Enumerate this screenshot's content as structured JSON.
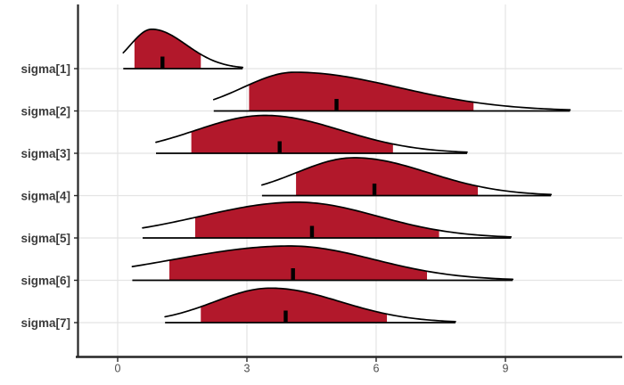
{
  "figure": {
    "background": "#FFFFFF",
    "kind": "ridgeline posterior density plot"
  },
  "style": {
    "fill_color": "#B2182B",
    "outline_color": "#000000",
    "median_tick_color": "#000000",
    "axis_line_color": "#262626",
    "grid_color": "#E4E4E4",
    "y_label_color": "#3C3C3C",
    "x_label_color": "#4D4D4D"
  },
  "chart_data": {
    "type": "area",
    "subtype": "ridgeline-density-areas",
    "title": "",
    "xlabel": "",
    "ylabel": "",
    "grid": true,
    "legend": false,
    "x_ticks": [
      0,
      3,
      6,
      9
    ],
    "x_tick_labels": [
      "0",
      "3",
      "6",
      "9"
    ],
    "xlim": [
      -0.93,
      11.7
    ],
    "categories": [
      "sigma[1]",
      "sigma[2]",
      "sigma[3]",
      "sigma[4]",
      "sigma[5]",
      "sigma[6]",
      "sigma[7]"
    ],
    "series": [
      {
        "name": "sigma[1]",
        "curve_start": 0.13,
        "curve_end": 2.9,
        "mode": 0.79,
        "sigma_left": 0.49,
        "sigma_right": 0.8,
        "shade_from": 0.39,
        "shade_to": 1.93,
        "median": 1.04,
        "rel_height": 0.93
      },
      {
        "name": "sigma[2]",
        "curve_start": 2.23,
        "curve_end": 10.5,
        "mode": 4.11,
        "sigma_left": 1.2,
        "sigma_right": 2.41,
        "shade_from": 3.05,
        "shade_to": 8.26,
        "median": 5.08,
        "rel_height": 0.915
      },
      {
        "name": "sigma[3]",
        "curve_start": 0.89,
        "curve_end": 8.11,
        "mode": 3.42,
        "sigma_left": 1.61,
        "sigma_right": 1.77,
        "shade_from": 1.71,
        "shade_to": 6.39,
        "median": 3.76,
        "rel_height": 0.895
      },
      {
        "name": "sigma[4]",
        "curve_start": 3.35,
        "curve_end": 10.06,
        "mode": 5.49,
        "sigma_left": 1.34,
        "sigma_right": 1.72,
        "shade_from": 4.14,
        "shade_to": 8.36,
        "median": 5.96,
        "rel_height": 0.895
      },
      {
        "name": "sigma[5]",
        "curve_start": 0.58,
        "curve_end": 9.13,
        "mode": 4.17,
        "sigma_left": 2.25,
        "sigma_right": 1.87,
        "shade_from": 1.8,
        "shade_to": 7.46,
        "median": 4.51,
        "rel_height": 0.845
      },
      {
        "name": "sigma[6]",
        "curve_start": 0.34,
        "curve_end": 9.17,
        "mode": 4.0,
        "sigma_left": 2.7,
        "sigma_right": 1.95,
        "shade_from": 1.2,
        "shade_to": 7.18,
        "median": 4.07,
        "rel_height": 0.81
      },
      {
        "name": "sigma[7]",
        "curve_start": 1.1,
        "curve_end": 7.84,
        "mode": 3.55,
        "sigma_left": 1.3,
        "sigma_right": 1.62,
        "shade_from": 1.93,
        "shade_to": 6.25,
        "median": 3.9,
        "rel_height": 0.815
      }
    ]
  }
}
